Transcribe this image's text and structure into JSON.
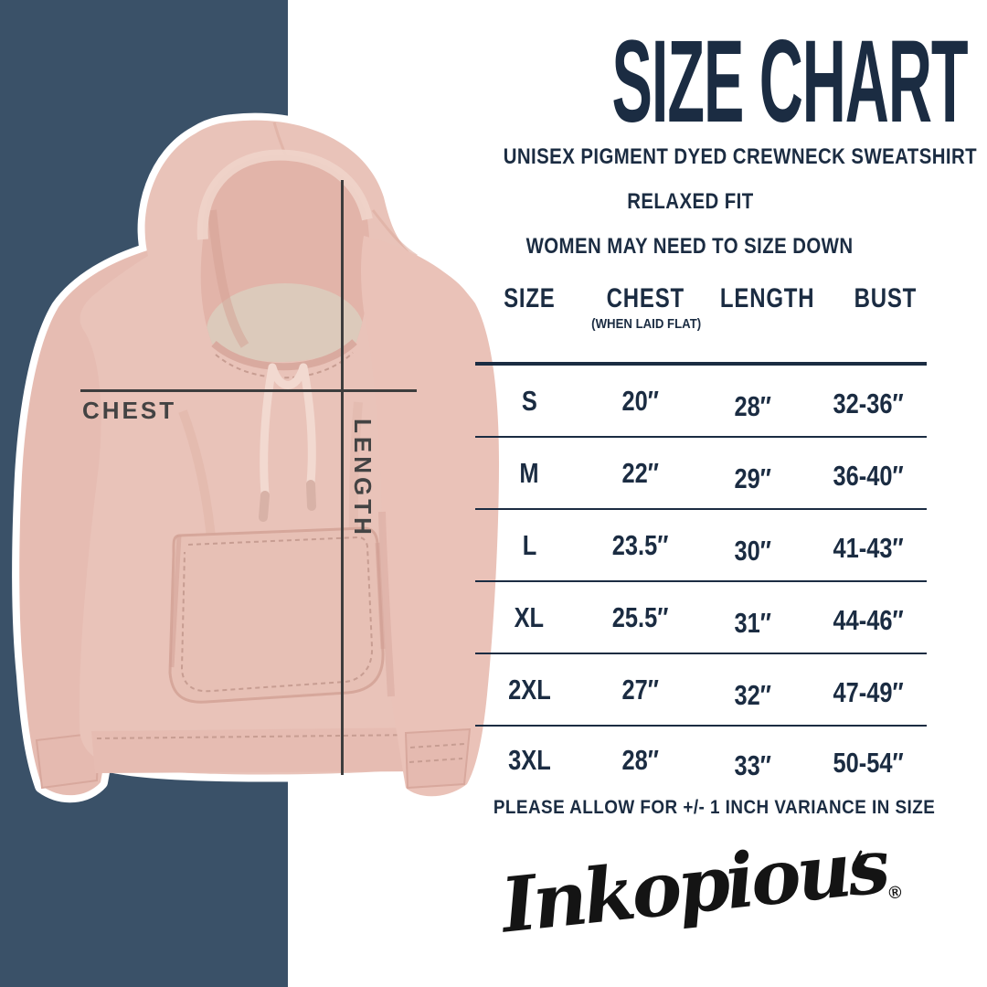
{
  "colors": {
    "panel_navy": "#3A5168",
    "text_navy": "#1B2C42",
    "label_gray": "#434343",
    "hoodie_pink": "#E9C3B9",
    "logo_black": "#141414"
  },
  "measure": {
    "chest_label": "CHEST",
    "length_label": "LENGTH"
  },
  "header": {
    "title": "SIZE CHART",
    "subtitle_fabric": "UNISEX PIGMENT DYED CREWNECK SWEATSHIRT",
    "subtitle_fit": "RELAXED FIT",
    "subtitle_sizing": "WOMEN MAY NEED TO SIZE DOWN"
  },
  "table": {
    "columns": [
      "SIZE",
      "CHEST",
      "LENGTH",
      "BUST"
    ],
    "chest_subnote": "(WHEN LAID FLAT)",
    "rows": [
      {
        "size": "S",
        "chest": "20″",
        "length": "28″",
        "bust": "32-36″"
      },
      {
        "size": "M",
        "chest": "22″",
        "length": "29″",
        "bust": "36-40″"
      },
      {
        "size": "L",
        "chest": "23.5″",
        "length": "30″",
        "bust": "41-43″"
      },
      {
        "size": "XL",
        "chest": "25.5″",
        "length": "31″",
        "bust": "44-46″"
      },
      {
        "size": "2XL",
        "chest": "27″",
        "length": "32″",
        "bust": "47-49″"
      },
      {
        "size": "3XL",
        "chest": "28″",
        "length": "33″",
        "bust": "50-54″"
      }
    ]
  },
  "footer": {
    "variance_note": "PLEASE ALLOW FOR +/- 1 INCH VARIANCE IN SIZE"
  },
  "brand": {
    "name": "Inkopious",
    "registered": "®"
  }
}
